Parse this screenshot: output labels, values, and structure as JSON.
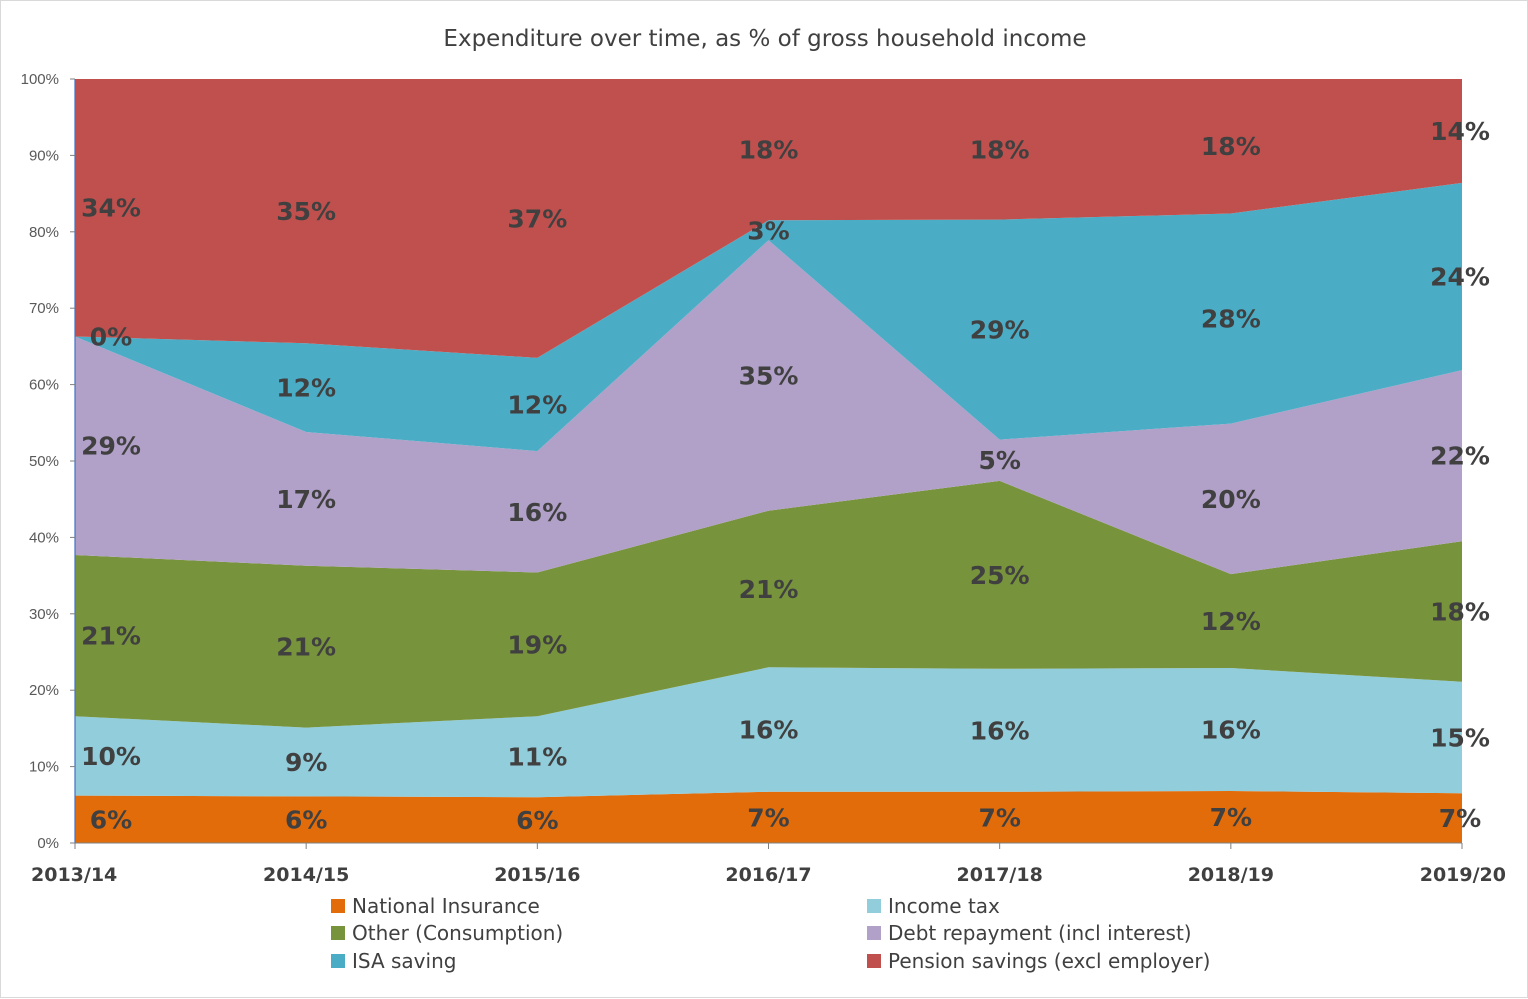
{
  "chart_data": {
    "type": "area",
    "stacked": true,
    "title": "Expenditure over time, as % of gross household income",
    "xlabel": "",
    "ylabel": "",
    "categories": [
      "2013/14",
      "2014/15",
      "2015/16",
      "2016/17",
      "2017/18",
      "2018/19",
      "2019/20"
    ],
    "ylim": [
      0,
      100
    ],
    "yticks": [
      "0%",
      "10%",
      "20%",
      "30%",
      "40%",
      "50%",
      "60%",
      "70%",
      "80%",
      "90%",
      "100%"
    ],
    "legend_position": "bottom",
    "series": [
      {
        "name": "National Insurance",
        "color": "#E36C0A",
        "values": [
          6.2,
          6.1,
          6.0,
          6.7,
          6.7,
          6.8,
          6.5
        ],
        "labels": [
          "6%",
          "6%",
          "6%",
          "7%",
          "7%",
          "7%",
          "7%"
        ]
      },
      {
        "name": "Income tax",
        "color": "#92CDDC",
        "values": [
          10.4,
          9.0,
          10.6,
          16.3,
          16.1,
          16.1,
          14.6
        ],
        "labels": [
          "10%",
          "9%",
          "11%",
          "16%",
          "16%",
          "16%",
          "15%"
        ]
      },
      {
        "name": "Other (Consumption)",
        "color": "#77933C",
        "values": [
          21.1,
          21.2,
          18.8,
          20.5,
          24.6,
          12.3,
          18.4
        ],
        "labels": [
          "21%",
          "21%",
          "19%",
          "21%",
          "25%",
          "12%",
          "18%"
        ]
      },
      {
        "name": "Debt repayment (incl interest)",
        "color": "#B1A0C7",
        "values": [
          28.6,
          17.5,
          15.9,
          35.4,
          5.4,
          19.7,
          22.4
        ],
        "labels": [
          "29%",
          "17%",
          "16%",
          "35%",
          "5%",
          "20%",
          "22%"
        ]
      },
      {
        "name": "ISA saving",
        "color": "#4BACC6",
        "values": [
          0.0,
          11.6,
          12.2,
          2.6,
          28.8,
          27.5,
          24.5
        ],
        "labels": [
          "0%",
          "12%",
          "12%",
          "3%",
          "29%",
          "28%",
          "24%"
        ]
      },
      {
        "name": "Pension savings (excl employer)",
        "color": "#C0504D",
        "values": [
          33.7,
          34.6,
          36.5,
          18.5,
          18.4,
          17.6,
          13.6
        ],
        "labels": [
          "34%",
          "35%",
          "37%",
          "18%",
          "18%",
          "18%",
          "14%"
        ]
      }
    ]
  }
}
